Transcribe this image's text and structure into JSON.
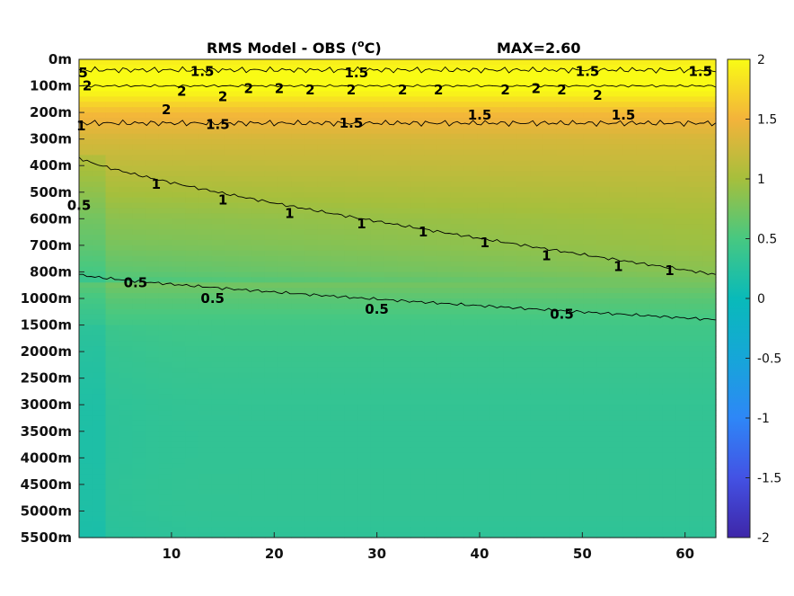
{
  "chart_data": {
    "type": "heatmap",
    "title": "RMS Model - OBS (",
    "title_unit_super": "o",
    "title_unit": "C)",
    "max_label": "MAX=2.60",
    "x_range": [
      1,
      63
    ],
    "x_ticks": [
      10,
      20,
      30,
      40,
      50,
      60
    ],
    "y_ticks": [
      "0m",
      "100m",
      "200m",
      "300m",
      "400m",
      "500m",
      "600m",
      "700m",
      "800m",
      "1000m",
      "1500m",
      "2000m",
      "2500m",
      "3000m",
      "3500m",
      "4000m",
      "4500m",
      "5000m",
      "5500m"
    ],
    "colorbar": {
      "range": [
        -2,
        2
      ],
      "ticks": [
        2,
        1.5,
        1,
        0.5,
        0,
        -0.5,
        -1,
        -1.5,
        -2
      ]
    },
    "value_profile_by_depth_level": [
      1.9,
      2.1,
      1.55,
      1.3,
      1.2,
      1.1,
      1.0,
      0.95,
      0.85,
      0.6,
      0.45,
      0.4,
      0.37,
      0.34,
      0.33,
      0.33,
      0.34,
      0.33,
      0.3
    ],
    "contours": [
      {
        "level": "2",
        "depth_level": 1.0
      },
      {
        "level": "1.5",
        "depth_level": 0.4
      },
      {
        "level": "1.5",
        "depth_level": 2.4
      },
      {
        "level": "1",
        "depth_start": 3.7,
        "depth_end": 8.1
      },
      {
        "level": "0.5",
        "depth_start": 8.1,
        "depth_end": 9.8
      }
    ],
    "contour_labels": [
      {
        "text": "1.5",
        "x": 13.0,
        "d": 0.45
      },
      {
        "text": "1.5",
        "x": 28.0,
        "d": 0.5
      },
      {
        "text": "1.5",
        "x": 50.5,
        "d": 0.45
      },
      {
        "text": "1.5",
        "x": 61.5,
        "d": 0.45
      },
      {
        "text": "5",
        "x": 1.4,
        "d": 0.5
      },
      {
        "text": "2",
        "x": 1.8,
        "d": 1.0
      },
      {
        "text": "2",
        "x": 11.0,
        "d": 1.2
      },
      {
        "text": "2",
        "x": 15.0,
        "d": 1.4
      },
      {
        "text": "2",
        "x": 17.5,
        "d": 1.1
      },
      {
        "text": "2",
        "x": 20.5,
        "d": 1.1
      },
      {
        "text": "2",
        "x": 23.5,
        "d": 1.15
      },
      {
        "text": "2",
        "x": 27.5,
        "d": 1.15
      },
      {
        "text": "2",
        "x": 32.5,
        "d": 1.15
      },
      {
        "text": "2",
        "x": 36.0,
        "d": 1.15
      },
      {
        "text": "2",
        "x": 42.5,
        "d": 1.15
      },
      {
        "text": "2",
        "x": 45.5,
        "d": 1.1
      },
      {
        "text": "2",
        "x": 48.0,
        "d": 1.15
      },
      {
        "text": "2",
        "x": 51.5,
        "d": 1.35
      },
      {
        "text": "2",
        "x": 9.5,
        "d": 1.9
      },
      {
        "text": "1.5",
        "x": 14.5,
        "d": 2.45
      },
      {
        "text": "1.5",
        "x": 27.5,
        "d": 2.4
      },
      {
        "text": "1.5",
        "x": 40.0,
        "d": 2.1
      },
      {
        "text": "1.5",
        "x": 54.0,
        "d": 2.1
      },
      {
        "text": "1",
        "x": 1.2,
        "d": 2.5
      },
      {
        "text": "1",
        "x": 8.5,
        "d": 4.7
      },
      {
        "text": "1",
        "x": 15.0,
        "d": 5.3
      },
      {
        "text": "1",
        "x": 21.5,
        "d": 5.8
      },
      {
        "text": "1",
        "x": 28.5,
        "d": 6.2
      },
      {
        "text": "1",
        "x": 34.5,
        "d": 6.5
      },
      {
        "text": "1",
        "x": 40.5,
        "d": 6.9
      },
      {
        "text": "1",
        "x": 46.5,
        "d": 7.4
      },
      {
        "text": "1",
        "x": 53.5,
        "d": 7.8
      },
      {
        "text": "1",
        "x": 58.5,
        "d": 7.95
      },
      {
        "text": "0.5",
        "x": 1.0,
        "d": 5.5
      },
      {
        "text": "0.5",
        "x": 6.5,
        "d": 8.4
      },
      {
        "text": "0.5",
        "x": 14.0,
        "d": 9.0
      },
      {
        "text": "0.5",
        "x": 30.0,
        "d": 9.4
      },
      {
        "text": "0.5",
        "x": 48.0,
        "d": 9.6
      }
    ]
  }
}
